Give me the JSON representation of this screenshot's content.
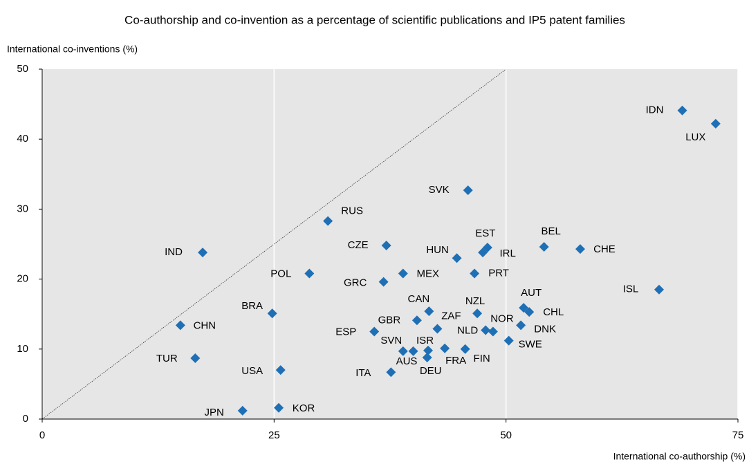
{
  "chart_data": {
    "type": "scatter",
    "title": "Co-authorship and co-invention as a percentage of scientific publications and IP5 patent families",
    "ylabel": "International co-inventions  (%)",
    "xlabel": "International co-authorship  (%)",
    "color": "#1f6fb5",
    "grid": "x",
    "xlim": [
      0,
      75
    ],
    "ylim": [
      0,
      50
    ],
    "xticks": [
      0,
      25,
      50,
      75
    ],
    "yticks": [
      0,
      10,
      20,
      30,
      40,
      50
    ],
    "labels": [
      "IDN",
      "LUX",
      "SVK",
      "RUS",
      "IND",
      "CZE",
      "EST",
      "IRL",
      "HUN",
      "BEL",
      "CHE",
      "POL",
      "MEX",
      "PRT",
      "GRC",
      "ISL",
      "BRA",
      "CAN",
      "NZL",
      "AUT",
      "CHL",
      "GBR",
      "ZAF",
      "NOR",
      "NLD",
      "DNK",
      "CHN",
      "ESP",
      "SWE",
      "SVN",
      "ISR",
      "AUS",
      "DEU",
      "FRA",
      "FIN",
      "TUR",
      "USA",
      "ITA",
      "JPN",
      "KOR"
    ],
    "x": [
      69.0,
      72.6,
      45.9,
      30.8,
      17.3,
      37.1,
      48.0,
      47.5,
      44.7,
      54.1,
      58.0,
      28.8,
      38.9,
      46.6,
      36.8,
      66.5,
      24.8,
      41.7,
      46.9,
      51.9,
      52.5,
      40.4,
      42.6,
      48.6,
      47.8,
      51.6,
      14.9,
      35.8,
      50.3,
      38.9,
      40.0,
      41.6,
      41.5,
      43.4,
      45.6,
      16.5,
      25.7,
      37.6,
      21.6,
      25.5
    ],
    "values": [
      44.1,
      42.2,
      32.7,
      28.3,
      23.8,
      24.8,
      24.5,
      23.8,
      23.0,
      24.6,
      24.3,
      20.8,
      20.8,
      20.8,
      19.6,
      18.5,
      15.1,
      15.4,
      15.1,
      15.9,
      15.3,
      14.1,
      12.9,
      12.5,
      12.7,
      13.4,
      13.4,
      12.5,
      11.2,
      9.7,
      9.7,
      9.8,
      8.8,
      10.1,
      10.0,
      8.7,
      7.0,
      6.7,
      1.2,
      1.6
    ]
  }
}
